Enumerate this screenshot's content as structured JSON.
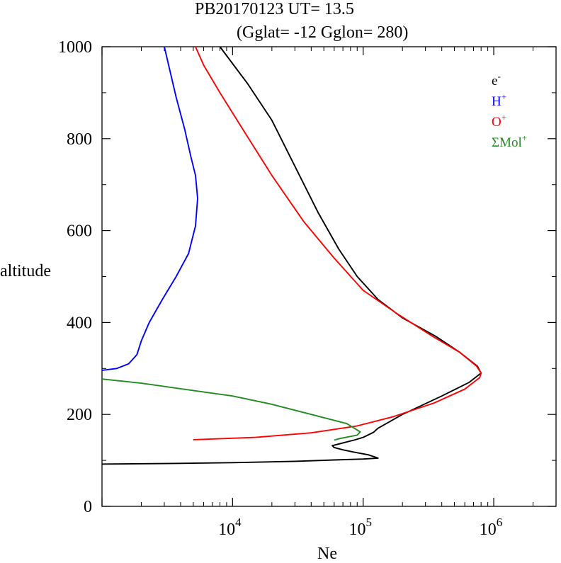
{
  "chart_data": {
    "type": "line",
    "title": "PB20170123   UT=  13.5",
    "subtitle": "(Gglat= -12   Gglon=  280)",
    "xlabel": "Ne",
    "ylabel": "altitude",
    "xscale": "log",
    "xlim": [
      1000,
      3000000
    ],
    "ylim": [
      0,
      1000
    ],
    "x_ticks": [
      {
        "base": "10",
        "exp": "4",
        "value": 10000
      },
      {
        "base": "10",
        "exp": "5",
        "value": 100000
      },
      {
        "base": "10",
        "exp": "6",
        "value": 1000000
      }
    ],
    "y_ticks": [
      "0",
      "200",
      "400",
      "600",
      "800",
      "1000"
    ],
    "y_tick_values": [
      0,
      200,
      400,
      600,
      800,
      1000
    ],
    "grid": false,
    "legend_position": "top-right",
    "series": [
      {
        "name": "e",
        "legend_base": "e",
        "legend_sup": "-",
        "color": "#000000",
        "points": [
          [
            1000,
            92
          ],
          [
            3000,
            93
          ],
          [
            10000,
            95
          ],
          [
            30000,
            98
          ],
          [
            60000,
            101
          ],
          [
            100000,
            103
          ],
          [
            130000,
            105
          ],
          [
            110000,
            112
          ],
          [
            85000,
            118
          ],
          [
            70000,
            123
          ],
          [
            60000,
            128
          ],
          [
            58000,
            132
          ],
          [
            70000,
            138
          ],
          [
            85000,
            144
          ],
          [
            100000,
            150
          ],
          [
            120000,
            161
          ],
          [
            130000,
            170
          ],
          [
            200000,
            200
          ],
          [
            400000,
            240
          ],
          [
            650000,
            270
          ],
          [
            800000,
            290
          ],
          [
            750000,
            305
          ],
          [
            550000,
            335
          ],
          [
            360000,
            370
          ],
          [
            200000,
            410
          ],
          [
            130000,
            450
          ],
          [
            90000,
            500
          ],
          [
            65000,
            560
          ],
          [
            45000,
            640
          ],
          [
            30000,
            740
          ],
          [
            20000,
            840
          ],
          [
            13000,
            920
          ],
          [
            8000,
            1000
          ]
        ]
      },
      {
        "name": "H",
        "legend_base": "H",
        "legend_sup": "+",
        "color": "#0000ff",
        "points": [
          [
            1000,
            296
          ],
          [
            1300,
            300
          ],
          [
            1600,
            310
          ],
          [
            1850,
            330
          ],
          [
            2000,
            360
          ],
          [
            2300,
            400
          ],
          [
            2900,
            450
          ],
          [
            3700,
            500
          ],
          [
            4600,
            550
          ],
          [
            5200,
            610
          ],
          [
            5400,
            670
          ],
          [
            5200,
            720
          ],
          [
            4800,
            760
          ],
          [
            4300,
            820
          ],
          [
            3700,
            890
          ],
          [
            3300,
            950
          ],
          [
            3000,
            1000
          ]
        ]
      },
      {
        "name": "O",
        "legend_base": "O",
        "legend_sup": "+",
        "color": "#ff0000",
        "points": [
          [
            5000,
            145
          ],
          [
            15000,
            150
          ],
          [
            40000,
            160
          ],
          [
            90000,
            175
          ],
          [
            170000,
            195
          ],
          [
            350000,
            225
          ],
          [
            600000,
            255
          ],
          [
            780000,
            280
          ],
          [
            800000,
            290
          ],
          [
            740000,
            305
          ],
          [
            550000,
            335
          ],
          [
            340000,
            370
          ],
          [
            180000,
            420
          ],
          [
            100000,
            470
          ],
          [
            60000,
            540
          ],
          [
            35000,
            620
          ],
          [
            20000,
            720
          ],
          [
            12000,
            820
          ],
          [
            8000,
            900
          ],
          [
            6000,
            960
          ],
          [
            5200,
            1000
          ]
        ]
      },
      {
        "name": "ΣMol",
        "legend_base": "ΣMol",
        "legend_sup": "+",
        "color": "#228b22",
        "points": [
          [
            1000,
            277
          ],
          [
            2000,
            268
          ],
          [
            4000,
            256
          ],
          [
            10000,
            240
          ],
          [
            20000,
            222
          ],
          [
            40000,
            200
          ],
          [
            75000,
            180
          ],
          [
            95000,
            162
          ],
          [
            90000,
            155
          ],
          [
            65000,
            147
          ],
          [
            60000,
            144
          ]
        ]
      }
    ]
  }
}
